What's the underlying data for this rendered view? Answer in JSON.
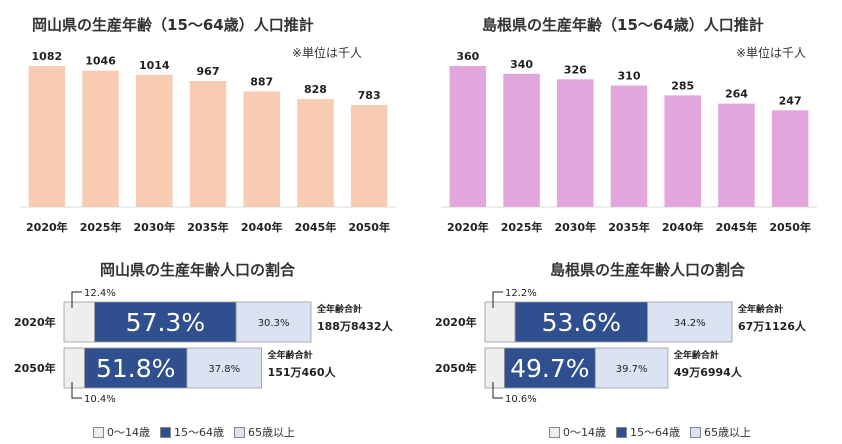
{
  "colors": {
    "okayama_bar": "#f8cbb3",
    "shimane_bar": "#e3a6dc",
    "age_0_14": "#eeeeee",
    "age_15_64": "#2f4f8f",
    "age_65_plus": "#dbe3f3"
  },
  "bar_unit_note": "※単位は千人",
  "chart_data": [
    {
      "type": "bar",
      "title": "岡山県の生産年齢（15～64歳）人口推計",
      "categories": [
        "2020年",
        "2025年",
        "2030年",
        "2035年",
        "2040年",
        "2045年",
        "2050年"
      ],
      "values": [
        1082,
        1046,
        1014,
        967,
        887,
        828,
        783
      ],
      "ylim": [
        0,
        1082
      ]
    },
    {
      "type": "bar",
      "title": "島根県の生産年齢（15～64歳）人口推計",
      "categories": [
        "2020年",
        "2025年",
        "2030年",
        "2035年",
        "2040年",
        "2045年",
        "2050年"
      ],
      "values": [
        360,
        340,
        326,
        310,
        285,
        264,
        247
      ],
      "ylim": [
        0,
        360
      ]
    },
    {
      "type": "bar",
      "stacked": true,
      "title": "岡山県の生産年齢人口の割合",
      "rows": [
        {
          "label": "2020年",
          "values": [
            12.4,
            57.3,
            30.3
          ],
          "value_labels": [
            "12.4%",
            "57.3%",
            "30.3%"
          ],
          "total_label": "全年齢合計",
          "total": "188万8432人",
          "total_value": 1888432
        },
        {
          "label": "2050年",
          "values": [
            10.4,
            51.8,
            37.8
          ],
          "value_labels": [
            "10.4%",
            "51.8%",
            "37.8%"
          ],
          "total_label": "全年齢合計",
          "total": "151万460人",
          "total_value": 1510460
        }
      ],
      "legend": [
        "0～14歳",
        "15～64歳",
        "65歳以上"
      ]
    },
    {
      "type": "bar",
      "stacked": true,
      "title": "島根県の生産年齢人口の割合",
      "rows": [
        {
          "label": "2020年",
          "values": [
            12.2,
            53.6,
            34.2
          ],
          "value_labels": [
            "12.2%",
            "53.6%",
            "34.2%"
          ],
          "total_label": "全年齢合計",
          "total": "67万1126人",
          "total_value": 671126
        },
        {
          "label": "2050年",
          "values": [
            10.6,
            49.7,
            39.7
          ],
          "value_labels": [
            "10.6%",
            "49.7%",
            "39.7%"
          ],
          "total_label": "全年齢合計",
          "total": "49万6994人",
          "total_value": 496994
        }
      ],
      "legend": [
        "0～14歳",
        "15～64歳",
        "65歳以上"
      ]
    }
  ]
}
